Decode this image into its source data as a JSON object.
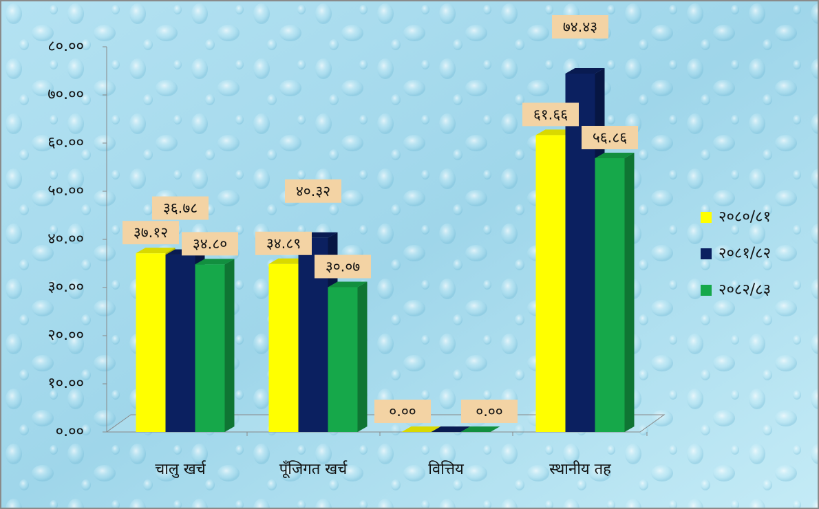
{
  "chart_data": {
    "type": "bar",
    "categories": [
      "चालु खर्च",
      "पूँजिगत खर्च",
      "वित्तिय",
      "स्थानीय तह"
    ],
    "series": [
      {
        "name": "२०८०/८१",
        "color": "#ffff00",
        "values": [
          37.12,
          34.89,
          0,
          61.66
        ],
        "value_labels": [
          "३७.१२",
          "३४.८९",
          "०.००",
          "६१.६६"
        ]
      },
      {
        "name": "२०८१/८२",
        "color": "#0b2060",
        "values": [
          36.78,
          40.32,
          0,
          74.43
        ],
        "value_labels": [
          "३६.७८",
          "४०.३२",
          null,
          "७४.४३"
        ]
      },
      {
        "name": "२०८२/८३",
        "color": "#16a84a",
        "values": [
          34.8,
          30.07,
          0,
          56.86
        ],
        "value_labels": [
          "३४.८०",
          "३०.०७",
          "०.००",
          "५६.८६"
        ]
      }
    ],
    "ylim": [
      0,
      80
    ],
    "yticks": [
      {
        "value": 0,
        "label": "०.००"
      },
      {
        "value": 10,
        "label": "१०.००"
      },
      {
        "value": 20,
        "label": "२०.००"
      },
      {
        "value": 30,
        "label": "३०.००"
      },
      {
        "value": 40,
        "label": "४०.००"
      },
      {
        "value": 50,
        "label": "५०.००"
      },
      {
        "value": 60,
        "label": "६०.००"
      },
      {
        "value": 70,
        "label": "७०.००"
      },
      {
        "value": 80,
        "label": "८०.००"
      }
    ],
    "legend": "right"
  }
}
